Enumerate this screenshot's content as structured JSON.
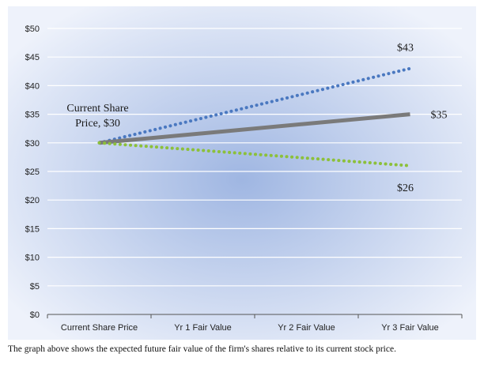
{
  "caption": "The graph above shows the expected future fair value of the firm's shares relative to its current stock price.",
  "colors": {
    "upper": "#4a78c0",
    "base": "#7a7a7a",
    "lower": "#8cc03a",
    "bg_center": "#9fb6e2",
    "bg_edge": "#eef2fb"
  },
  "chart_data": {
    "type": "line",
    "categories": [
      "Current Share Price",
      "Yr 1 Fair Value",
      "Yr 2 Fair Value",
      "Yr 3 Fair Value"
    ],
    "ylim": [
      0,
      50
    ],
    "yticks": [
      0,
      5,
      10,
      15,
      20,
      25,
      30,
      35,
      40,
      45,
      50
    ],
    "ytick_labels": [
      "$0",
      "$5",
      "$10",
      "$15",
      "$20",
      "$25",
      "$30",
      "$35",
      "$40",
      "$45",
      "$50"
    ],
    "grid": true,
    "series": [
      {
        "key": "upper",
        "style": "dotted",
        "x": [
          "Current Share Price",
          "Yr 3 Fair Value"
        ],
        "values": [
          30,
          43
        ]
      },
      {
        "key": "base",
        "style": "solid",
        "x": [
          "Current Share Price",
          "Yr 3 Fair Value"
        ],
        "values": [
          30,
          35
        ]
      },
      {
        "key": "lower",
        "style": "dotted",
        "x": [
          "Current Share Price",
          "Yr 3 Fair Value"
        ],
        "values": [
          30,
          26
        ]
      }
    ],
    "annotations": [
      {
        "text": "$43",
        "series": "upper"
      },
      {
        "text": "$35",
        "series": "base"
      },
      {
        "text": "$26",
        "series": "lower"
      },
      {
        "text_lines": [
          "Current Share",
          "Price, $30"
        ],
        "series": "start"
      }
    ]
  }
}
